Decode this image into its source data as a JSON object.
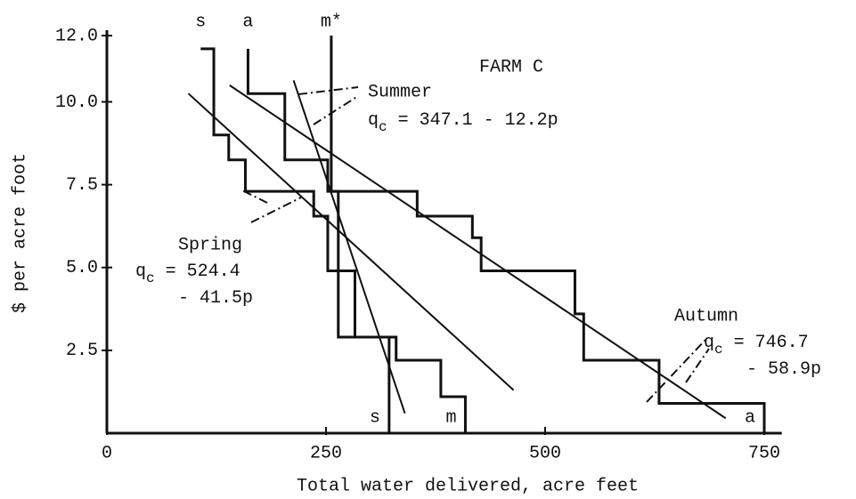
{
  "chart_data": {
    "type": "line",
    "annotation": "FARM C",
    "xlabel": "Total water delivered, acre feet",
    "ylabel": "$ per acre foot",
    "xlim": [
      0,
      770
    ],
    "ylim": [
      0,
      12
    ],
    "xticks": [
      0,
      250,
      500,
      750
    ],
    "yticks": [
      {
        "value": 2.5,
        "label": "2.5"
      },
      {
        "value": 5,
        "label": "5.0"
      },
      {
        "value": 7.5,
        "label": "7.5"
      },
      {
        "value": 10,
        "label": "10.0"
      },
      {
        "value": 12,
        "label": "12.0"
      }
    ],
    "color": "#111111",
    "series": [
      {
        "name": "s",
        "end_label": "s",
        "x": [
          107,
          122,
          122,
          139,
          139,
          158,
          158,
          236,
          236,
          252,
          252,
          283,
          283,
          322,
          322
        ],
        "values": [
          11.6,
          11.6,
          9.0,
          9.0,
          8.25,
          8.25,
          7.3,
          7.3,
          6.55,
          6.55,
          4.9,
          4.9,
          2.9,
          2.9,
          0
        ]
      },
      {
        "name": "a",
        "end_label": "a",
        "x": [
          161,
          161,
          203,
          203,
          252,
          252,
          354,
          354,
          417,
          417,
          427,
          427,
          534,
          534,
          544,
          544,
          630,
          630,
          750,
          750
        ],
        "values": [
          11.6,
          10.25,
          10.25,
          8.25,
          8.25,
          7.3,
          7.3,
          6.55,
          6.55,
          5.9,
          5.9,
          4.9,
          4.9,
          3.6,
          3.6,
          2.2,
          2.2,
          0.9,
          0.9,
          0
        ]
      },
      {
        "name": "m*",
        "end_label": "m",
        "x": [
          256,
          256,
          264,
          264,
          330,
          330,
          381,
          381,
          409,
          409
        ],
        "values": [
          12,
          7.3,
          7.3,
          2.9,
          2.9,
          2.2,
          2.2,
          1.1,
          1.1,
          0
        ]
      }
    ],
    "fits": [
      {
        "name": "Summer",
        "equation": [
          {
            "var": "q",
            "sub": "c",
            "rest": " = 347.1 - 12.2p"
          }
        ],
        "x": [
          213,
          340
        ],
        "values": [
          10.65,
          0.6
        ]
      },
      {
        "name": "Spring",
        "equation": [
          {
            "var": "q",
            "sub": "c",
            "rest": " = 524.4"
          },
          {
            "rest": "- 41.5p"
          }
        ],
        "x": [
          93,
          464
        ],
        "values": [
          10.25,
          1.3
        ]
      },
      {
        "name": "Autumn",
        "equation": [
          {
            "var": "q",
            "sub": "c",
            "rest": " = 746.7"
          },
          {
            "rest": "- 58.9p"
          }
        ],
        "x": [
          140,
          706
        ],
        "values": [
          10.5,
          0.45
        ]
      }
    ]
  }
}
